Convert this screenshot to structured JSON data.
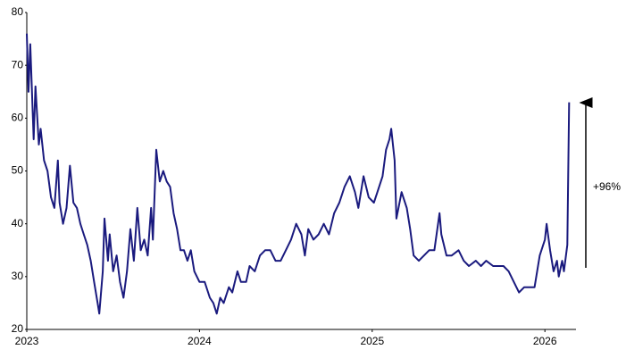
{
  "chart_data": {
    "type": "line",
    "annotation": "+96%",
    "x": [
      2023.0,
      2023.01,
      2023.02,
      2023.04,
      2023.05,
      2023.07,
      2023.08,
      2023.1,
      2023.12,
      2023.14,
      2023.16,
      2023.18,
      2023.19,
      2023.21,
      2023.23,
      2023.25,
      2023.27,
      2023.29,
      2023.31,
      2023.33,
      2023.35,
      2023.37,
      2023.39,
      2023.41,
      2023.42,
      2023.44,
      2023.45,
      2023.47,
      2023.48,
      2023.5,
      2023.52,
      2023.54,
      2023.56,
      2023.58,
      2023.6,
      2023.62,
      2023.64,
      2023.66,
      2023.68,
      2023.7,
      2023.72,
      2023.73,
      2023.75,
      2023.77,
      2023.79,
      2023.81,
      2023.83,
      2023.85,
      2023.87,
      2023.89,
      2023.91,
      2023.93,
      2023.95,
      2023.97,
      2024.0,
      2024.03,
      2024.06,
      2024.08,
      2024.1,
      2024.12,
      2024.14,
      2024.17,
      2024.19,
      2024.22,
      2024.24,
      2024.27,
      2024.29,
      2024.32,
      2024.35,
      2024.38,
      2024.41,
      2024.44,
      2024.47,
      2024.5,
      2024.53,
      2024.56,
      2024.59,
      2024.61,
      2024.63,
      2024.66,
      2024.69,
      2024.72,
      2024.75,
      2024.78,
      2024.81,
      2024.84,
      2024.87,
      2024.9,
      2024.92,
      2024.95,
      2024.98,
      2025.01,
      2025.03,
      2025.06,
      2025.08,
      2025.1,
      2025.11,
      2025.13,
      2025.14,
      2025.17,
      2025.2,
      2025.22,
      2025.24,
      2025.27,
      2025.3,
      2025.33,
      2025.36,
      2025.39,
      2025.4,
      2025.43,
      2025.46,
      2025.5,
      2025.53,
      2025.56,
      2025.6,
      2025.63,
      2025.66,
      2025.7,
      2025.73,
      2025.76,
      2025.79,
      2025.82,
      2025.85,
      2025.88,
      2025.91,
      2025.94,
      2025.97,
      2026.0,
      2026.01,
      2026.03,
      2026.05,
      2026.07,
      2026.08,
      2026.1,
      2026.11,
      2026.13,
      2026.14
    ],
    "series": [
      {
        "color": "#1a1a7e",
        "values": [
          76,
          65,
          74,
          56,
          66,
          55,
          58,
          52,
          50,
          45,
          43,
          52,
          44,
          40,
          43,
          51,
          44,
          43,
          40,
          38,
          36,
          33,
          29,
          25,
          23,
          31,
          41,
          33,
          38,
          31,
          34,
          29,
          26,
          31,
          39,
          33,
          43,
          35,
          37,
          34,
          43,
          37,
          54,
          48,
          50,
          48,
          47,
          42,
          39,
          35,
          35,
          33,
          35,
          31,
          29,
          29,
          26,
          25,
          23,
          26,
          25,
          28,
          27,
          31,
          29,
          29,
          32,
          31,
          34,
          35,
          35,
          33,
          33,
          35,
          37,
          40,
          38,
          34,
          39,
          37,
          38,
          40,
          38,
          42,
          44,
          47,
          49,
          46,
          43,
          49,
          45,
          44,
          46,
          49,
          54,
          56,
          58,
          52,
          41,
          46,
          43,
          39,
          34,
          33,
          34,
          35,
          35,
          42,
          38,
          34,
          34,
          35,
          33,
          32,
          33,
          32,
          33,
          32,
          32,
          32,
          31,
          29,
          27,
          28,
          28,
          28,
          34,
          37,
          40,
          35,
          31,
          33,
          30,
          33,
          31,
          36,
          63
        ]
      }
    ],
    "xlim": [
      2023,
      2026.18
    ],
    "xticks": [
      2023,
      2024,
      2025,
      2026
    ],
    "ylim": [
      20,
      80
    ],
    "yticks": [
      20,
      30,
      40,
      50,
      60,
      70,
      80
    ]
  }
}
